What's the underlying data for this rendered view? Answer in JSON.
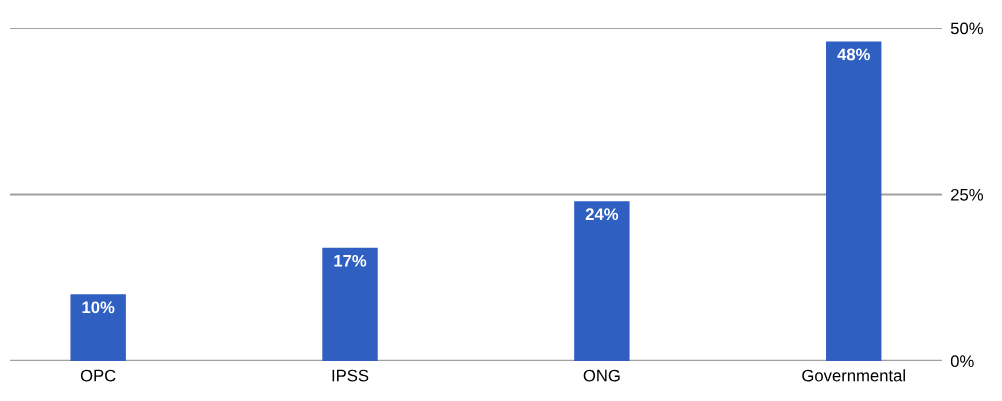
{
  "chart_data": {
    "type": "bar",
    "categories": [
      "OPC",
      "IPSS",
      "ONG",
      "Governmental"
    ],
    "values": [
      10,
      17,
      24,
      48
    ],
    "value_labels": [
      "10%",
      "17%",
      "24%",
      "48%"
    ],
    "color": "#2f5fc0",
    "ylim": [
      0,
      50
    ],
    "yticks": [
      {
        "value": 0,
        "label": "0%"
      },
      {
        "value": 25,
        "label": "25%"
      },
      {
        "value": 50,
        "label": "50%"
      }
    ],
    "grid": "y",
    "legend": false
  }
}
